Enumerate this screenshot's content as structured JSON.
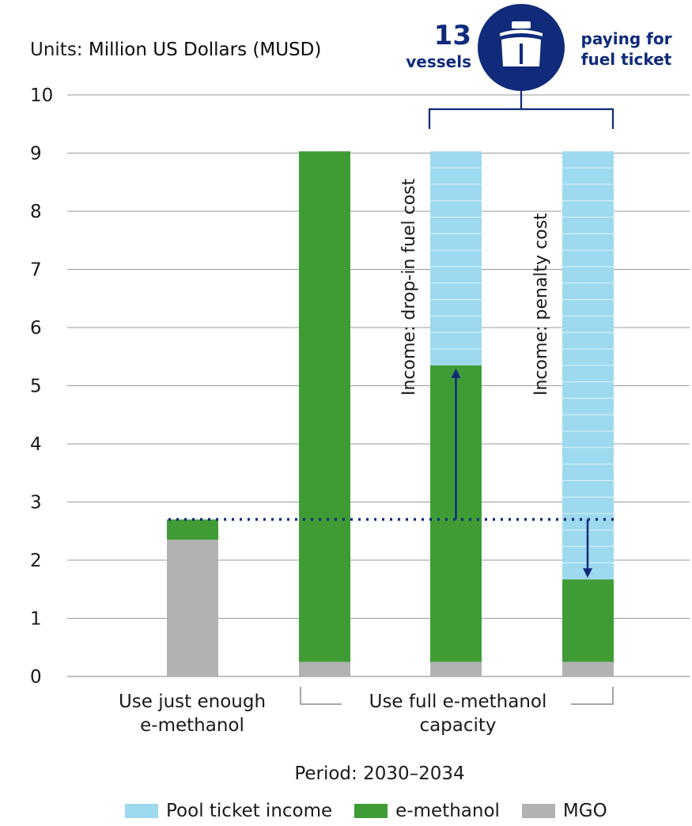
{
  "units": {
    "prefix": "Units:",
    "value": "Million US Dollars (MUSD)"
  },
  "callout": {
    "count": "13",
    "count_label": "vessels",
    "text_line1": "paying for",
    "text_line2": "fuel ticket"
  },
  "colors": {
    "pool_ticket_income": "#9dd9ef",
    "e_methanol": "#3f9c35",
    "mgo": "#b2b2b2",
    "navy": "#0f2b7a",
    "grid": "#9a9a9a"
  },
  "icons": {
    "callout": "ship-icon"
  },
  "chart_data": {
    "type": "bar",
    "stacked": true,
    "categories": [
      "Use just enough e-methanol",
      "Use full e-methanol capacity (1)",
      "Use full e-methanol capacity (2)",
      "Use full e-methanol capacity (3)"
    ],
    "series": [
      {
        "name": "MGO",
        "values": [
          2.35,
          0.25,
          0.25,
          0.25
        ]
      },
      {
        "name": "e-methanol",
        "values": [
          0.35,
          8.78,
          5.1,
          1.42
        ]
      },
      {
        "name": "Pool ticket income",
        "values": [
          0,
          0,
          3.68,
          7.36
        ]
      }
    ],
    "reference_line": 2.7,
    "bar_annotations": [
      "",
      "",
      "Income: drop-in fuel cost",
      "Income: penalty cost"
    ],
    "xlabel": "Period: 2030–2034",
    "ylim": [
      0,
      10
    ],
    "yticks": [
      "0",
      "1",
      "2",
      "3",
      "4",
      "5",
      "6",
      "7",
      "8",
      "9",
      "10"
    ],
    "legend": [
      "Pool ticket income",
      "e-methanol",
      "MGO"
    ],
    "legend_position": "bottom",
    "grid": true
  },
  "x_groups": {
    "group1_line1": "Use just enough",
    "group1_line2": "e-methanol",
    "group2_line1": "Use full e-methanol",
    "group2_line2": "capacity"
  }
}
